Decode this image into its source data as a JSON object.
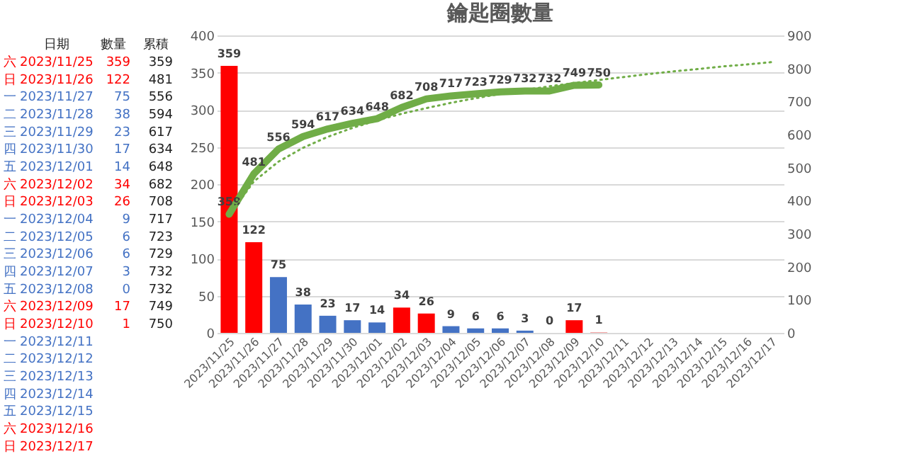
{
  "chart_data": [
    {
      "type": "other",
      "xlabel": "日期",
      "data_labels": true,
      "categories": [
        "2023/11/25",
        "2023/11/26",
        "2023/11/27",
        "2023/11/28",
        "2023/11/29",
        "2023/11/30",
        "2023/12/01",
        "2023/12/02",
        "2023/12/03",
        "2023/12/04",
        "2023/12/05",
        "2023/12/06",
        "2023/12/07",
        "2023/12/08",
        "2023/12/09",
        "2023/12/10",
        "2023/12/11",
        "2023/12/12",
        "2023/12/13",
        "2023/12/14",
        "2023/12/15",
        "2023/12/16",
        "2023/12/17"
      ],
      "annotations": [
        "六",
        "日",
        "一",
        "二",
        "三",
        "四",
        "五",
        "六",
        "日",
        "一",
        "二",
        "三",
        "四",
        "五",
        "六",
        "日",
        "一",
        "二",
        "三",
        "四",
        "五",
        "六",
        "日"
      ],
      "colors": [
        "#ff0000",
        "#ff0000",
        "#4472c4",
        "#4472c4",
        "#4472c4",
        "#4472c4",
        "#4472c4",
        "#ff0000",
        "#ff0000",
        "#4472c4",
        "#4472c4",
        "#4472c4",
        "#4472c4",
        "#4472c4",
        "#ff0000",
        "#ff0000",
        "#4472c4",
        "#4472c4",
        "#4472c4",
        "#4472c4",
        "#4472c4",
        "#ff0000",
        "#ff0000"
      ],
      "series": [
        {
          "name": "數量",
          "values": [
            359,
            122,
            75,
            38,
            23,
            17,
            14,
            34,
            26,
            9,
            6,
            6,
            3,
            0,
            17,
            1,
            null,
            null,
            null,
            null,
            null,
            null,
            null
          ]
        },
        {
          "name": "累積",
          "color": "#222222",
          "values": [
            359,
            481,
            556,
            594,
            617,
            634,
            648,
            682,
            708,
            717,
            723,
            729,
            732,
            732,
            749,
            750,
            null,
            null,
            null,
            null,
            null,
            null,
            null
          ]
        }
      ]
    },
    {
      "type": "bar",
      "title": "鑰匙圈數量",
      "categories": [
        "2023/11/25",
        "2023/11/26",
        "2023/11/27",
        "2023/11/28",
        "2023/11/29",
        "2023/11/30",
        "2023/12/01",
        "2023/12/02",
        "2023/12/03",
        "2023/12/04",
        "2023/12/05",
        "2023/12/06",
        "2023/12/07",
        "2023/12/08",
        "2023/12/09",
        "2023/12/10",
        "2023/12/11",
        "2023/12/12",
        "2023/12/13",
        "2023/12/14",
        "2023/12/15",
        "2023/12/16",
        "2023/12/17"
      ],
      "series": [
        {
          "type": "bar",
          "colors": [
            "#ff0000",
            "#ff0000",
            "#4472c4",
            "#4472c4",
            "#4472c4",
            "#4472c4",
            "#4472c4",
            "#ff0000",
            "#ff0000",
            "#4472c4",
            "#4472c4",
            "#4472c4",
            "#4472c4",
            "#4472c4",
            "#ff0000",
            "#f4a6a6",
            "#4472c4",
            "#4472c4",
            "#4472c4",
            "#4472c4",
            "#4472c4",
            "#ff0000",
            "#ff0000"
          ],
          "values": [
            359,
            122,
            75,
            38,
            23,
            17,
            14,
            34,
            26,
            9,
            6,
            6,
            3,
            0,
            17,
            1,
            null,
            null,
            null,
            null,
            null,
            null,
            null
          ]
        },
        {
          "type": "line",
          "axis": "y2",
          "color": "#70ad47",
          "values": [
            359,
            481,
            556,
            594,
            617,
            634,
            648,
            682,
            708,
            717,
            723,
            729,
            732,
            732,
            749,
            750,
            null,
            null,
            null,
            null,
            null,
            null,
            null
          ]
        },
        {
          "type": "line",
          "axis": "y2",
          "line_style": "dotted",
          "color": "#70ad47",
          "data_labels": false,
          "x": [
            "2023/11/25",
            "2023/11/26",
            "2023/11/27",
            "2023/11/28",
            "2023/11/29",
            "2023/11/30",
            "2023/12/01",
            "2023/12/02",
            "2023/12/03",
            "2023/12/04",
            "2023/12/05",
            "2023/12/06",
            "2023/12/07",
            "2023/12/08",
            "2023/12/09",
            "2023/12/10",
            "2023/12/11",
            "2023/12/12",
            "2023/12/13",
            "2023/12/14",
            "2023/12/15",
            "2023/12/16",
            "2023/12/17"
          ],
          "values": [
            355,
            458,
            518,
            560,
            593,
            620,
            643,
            663,
            680,
            696,
            710,
            723,
            735,
            746,
            756,
            765,
            774,
            783,
            791,
            798,
            806,
            812,
            819
          ]
        }
      ],
      "data_labels": true,
      "grid": "y",
      "ylim": [
        0,
        400
      ],
      "yticks": [
        0,
        50,
        100,
        150,
        200,
        250,
        300,
        350,
        400
      ],
      "y2lim": [
        0,
        900
      ],
      "y2ticks": [
        0,
        100,
        200,
        300,
        400,
        500,
        600,
        700,
        800,
        900
      ]
    }
  ]
}
